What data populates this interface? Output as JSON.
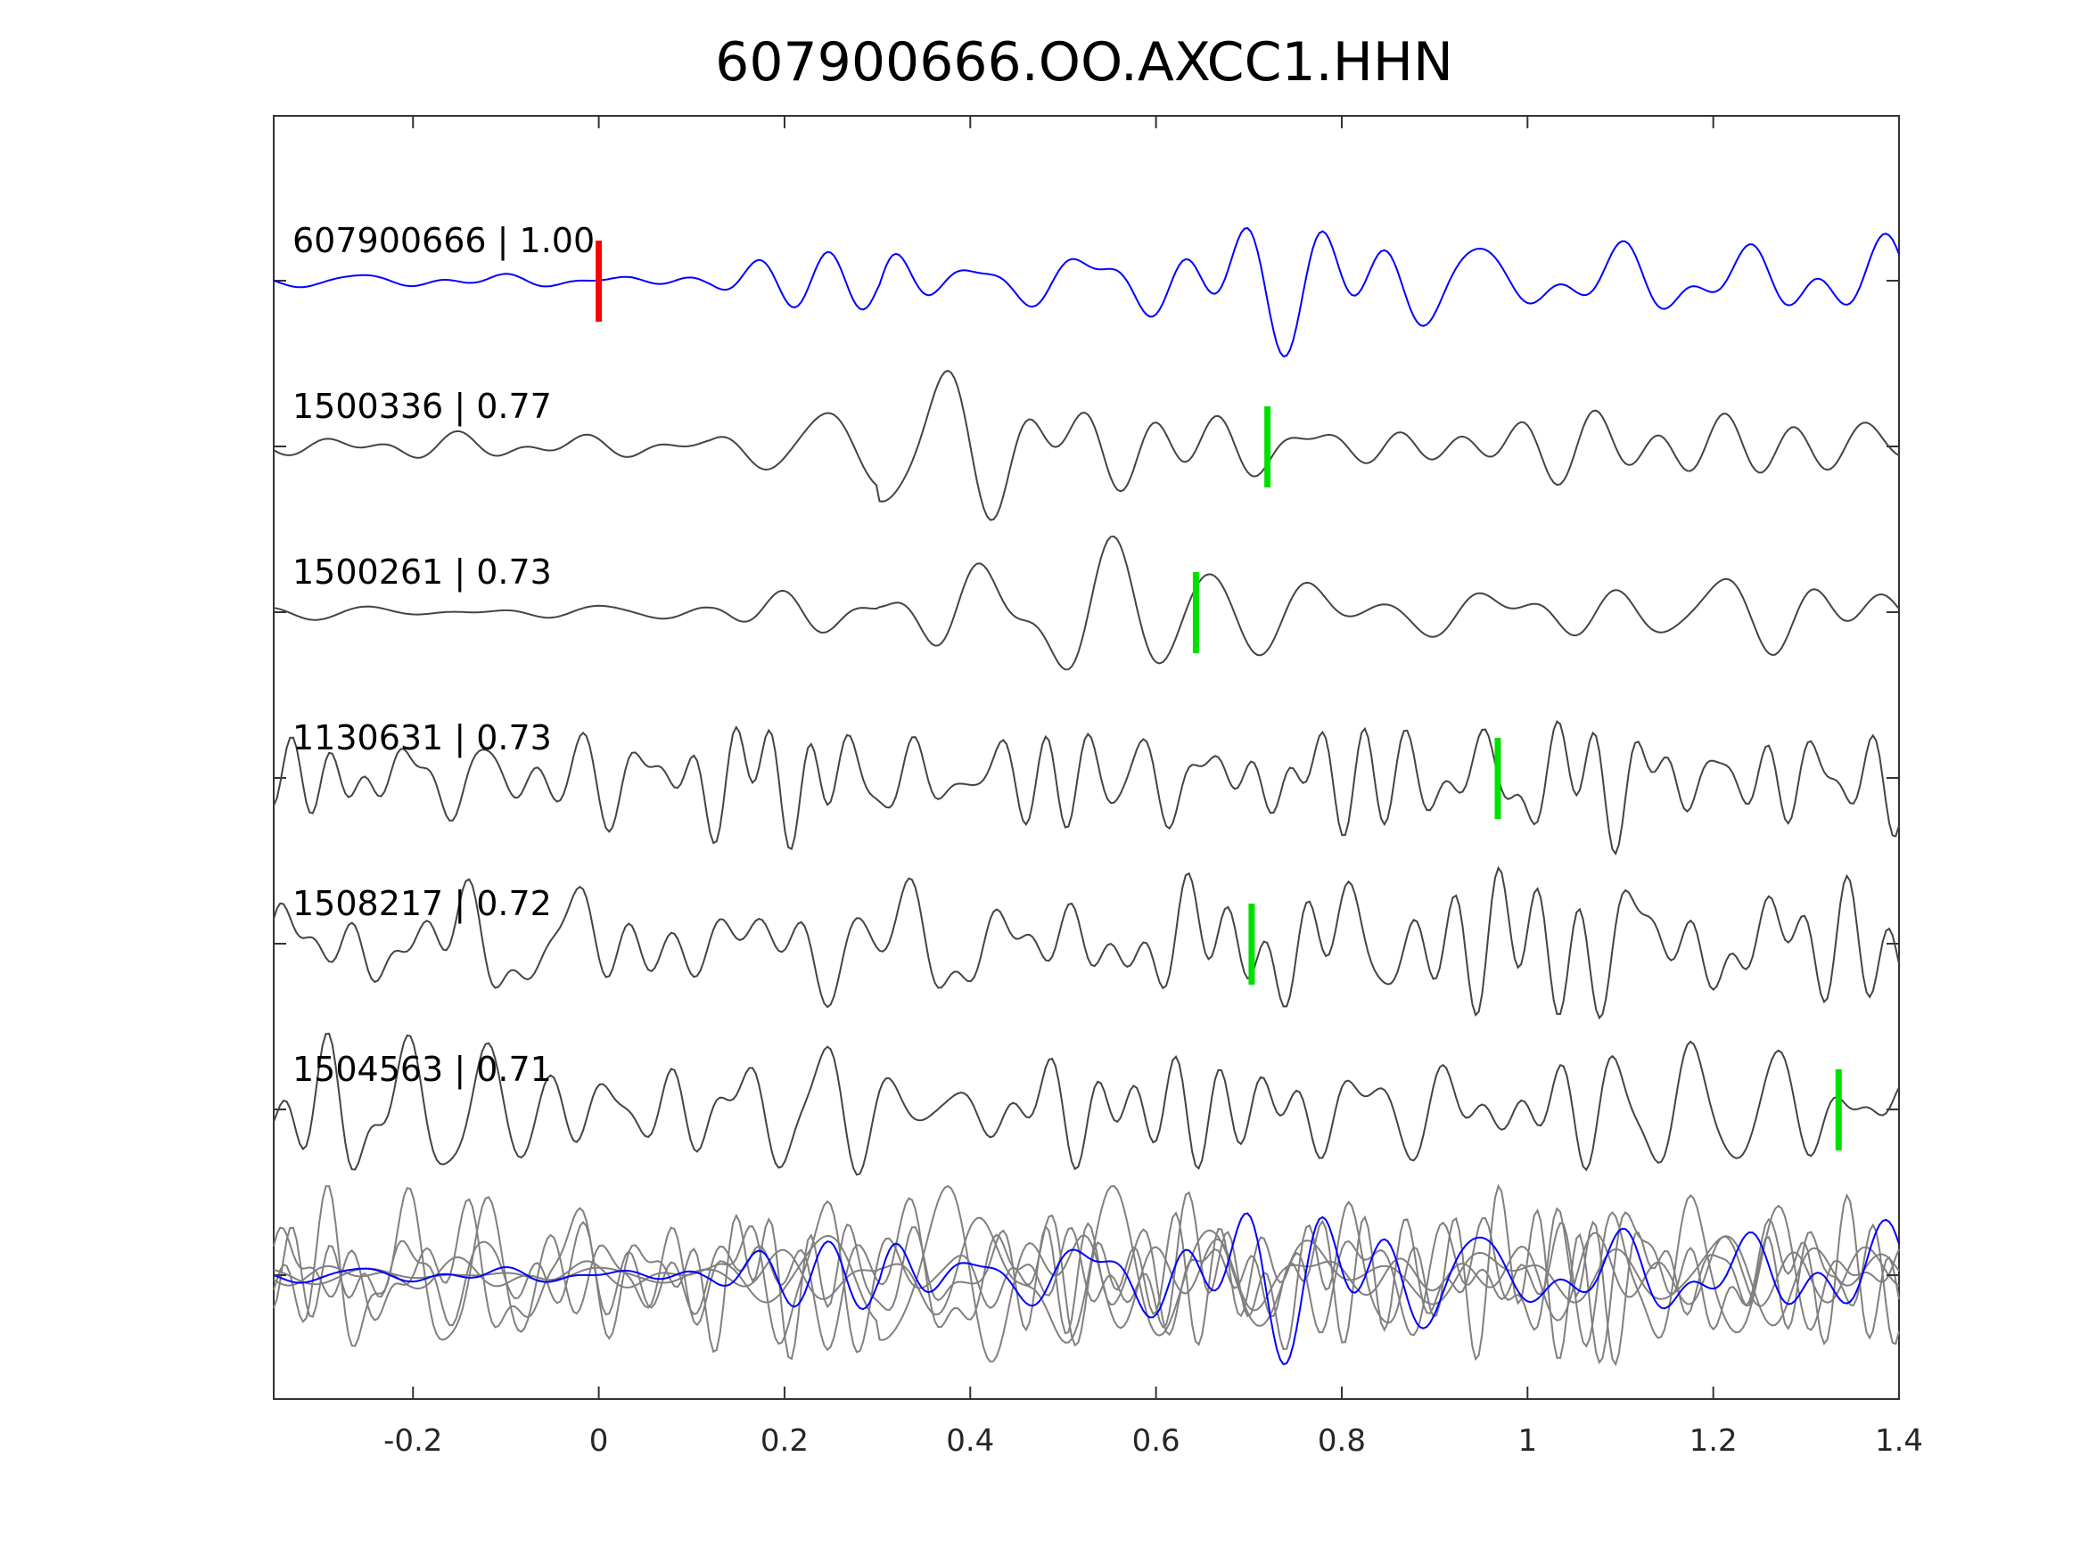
{
  "chart_data": {
    "type": "line",
    "title": "607900666.OO.AXCC1.HHN",
    "xlabel": "",
    "ylabel": "",
    "xlim": [
      -0.35,
      1.4
    ],
    "xticks": [
      "-0.2",
      "0",
      "0.2",
      "0.4",
      "0.6",
      "0.8",
      "1",
      "1.2",
      "1.4"
    ],
    "xtick_values": [
      -0.2,
      0,
      0.2,
      0.4,
      0.6,
      0.8,
      1,
      1.2,
      1.4
    ],
    "grid": false,
    "series": [
      {
        "name": "607900666",
        "label": "607900666 | 1.00",
        "correlation": 1.0,
        "pick_time": 0.0,
        "pick_color": "#ff0000",
        "color": "#0000ff"
      },
      {
        "name": "1500336",
        "label": "1500336 | 0.77",
        "correlation": 0.77,
        "pick_time": 0.72,
        "pick_color": "#00e000",
        "color": "#444444"
      },
      {
        "name": "1500261",
        "label": "1500261 | 0.73",
        "correlation": 0.73,
        "pick_time": 0.643,
        "pick_color": "#00e000",
        "color": "#444444"
      },
      {
        "name": "1130631",
        "label": "1130631 | 0.73",
        "correlation": 0.73,
        "pick_time": 0.968,
        "pick_color": "#00e000",
        "color": "#444444"
      },
      {
        "name": "1508217",
        "label": "1508217 | 0.72",
        "correlation": 0.72,
        "pick_time": 0.703,
        "pick_color": "#00e000",
        "color": "#444444"
      },
      {
        "name": "1504563",
        "label": "1504563 | 0.71",
        "correlation": 0.71,
        "pick_time": 1.335,
        "pick_color": "#00e000",
        "color": "#444444"
      }
    ],
    "stack": {
      "name": "overlay",
      "reference_color": "#0000ff",
      "others_color": "#808080"
    }
  }
}
